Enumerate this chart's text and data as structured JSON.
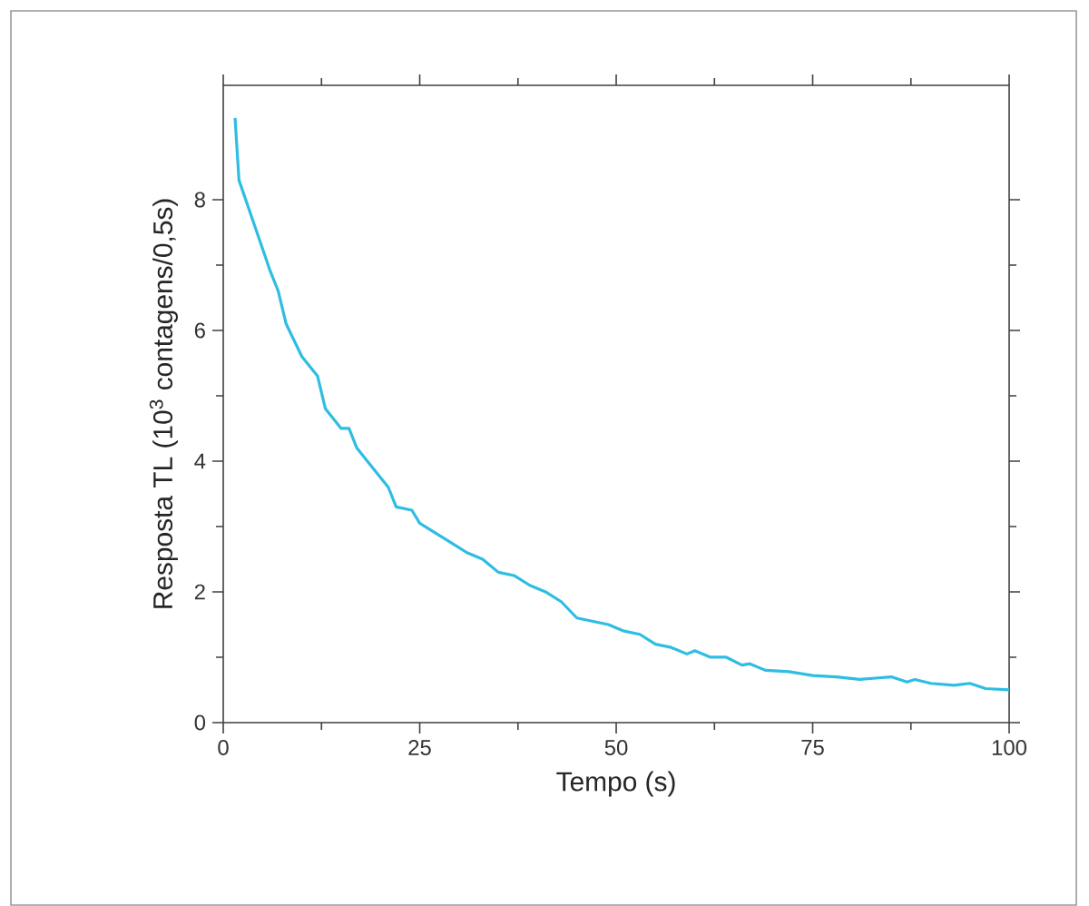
{
  "chart_data": {
    "type": "line",
    "xlabel": "Tempo (s)",
    "ylabel": "Resposta TL (10$^{3}$ contagens/0,5s)",
    "xlim": [
      0,
      100
    ],
    "ylim": [
      0,
      9.75
    ],
    "xticks": [
      0,
      25,
      50,
      75,
      100
    ],
    "yticks": [
      0,
      2,
      4,
      6,
      8
    ],
    "marker": "none",
    "line_style": "solid",
    "series": [
      {
        "color": "#2ebde3",
        "x": [
          1.5,
          2,
          4,
          6,
          7,
          8,
          10,
          12,
          13,
          15,
          16,
          17,
          19,
          21,
          22,
          24,
          25,
          27,
          29,
          31,
          33,
          35,
          37,
          39,
          41,
          43,
          45,
          47,
          49,
          51,
          53,
          55,
          57,
          59,
          60,
          62,
          64,
          66,
          67,
          69,
          72,
          75,
          78,
          81,
          83,
          85,
          87,
          88,
          90,
          93,
          95,
          97,
          100
        ],
        "values": [
          9.25,
          8.3,
          7.6,
          6.9,
          6.6,
          6.1,
          5.6,
          5.3,
          4.8,
          4.5,
          4.5,
          4.2,
          3.9,
          3.6,
          3.3,
          3.25,
          3.05,
          2.9,
          2.75,
          2.6,
          2.5,
          2.3,
          2.25,
          2.1,
          2.0,
          1.85,
          1.6,
          1.55,
          1.5,
          1.4,
          1.35,
          1.2,
          1.15,
          1.05,
          1.1,
          1.0,
          1.0,
          0.88,
          0.9,
          0.8,
          0.78,
          0.72,
          0.7,
          0.66,
          0.68,
          0.7,
          0.62,
          0.66,
          0.6,
          0.57,
          0.6,
          0.52,
          0.5
        ]
      }
    ]
  }
}
